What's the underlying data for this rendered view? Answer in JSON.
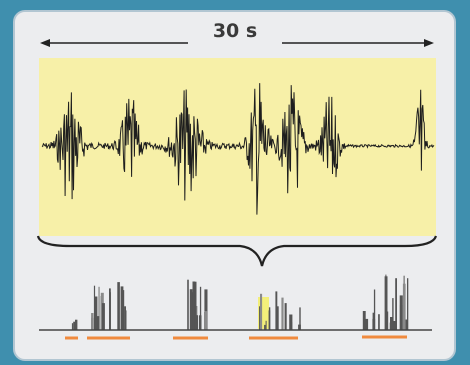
{
  "header": {
    "duration_label": "30 s"
  },
  "colors": {
    "background": "#3f8fae",
    "card": "#ecedef",
    "waveform_panel": "#f7f0a8",
    "waveform": "#1e1e1e",
    "event_bars": "#555555",
    "segment_marks": "#f08a3e",
    "highlight": "#f3ef7a"
  },
  "icons": [
    "double-arrow-icon",
    "curly-brace-icon"
  ],
  "segments_count_shown": 5
}
